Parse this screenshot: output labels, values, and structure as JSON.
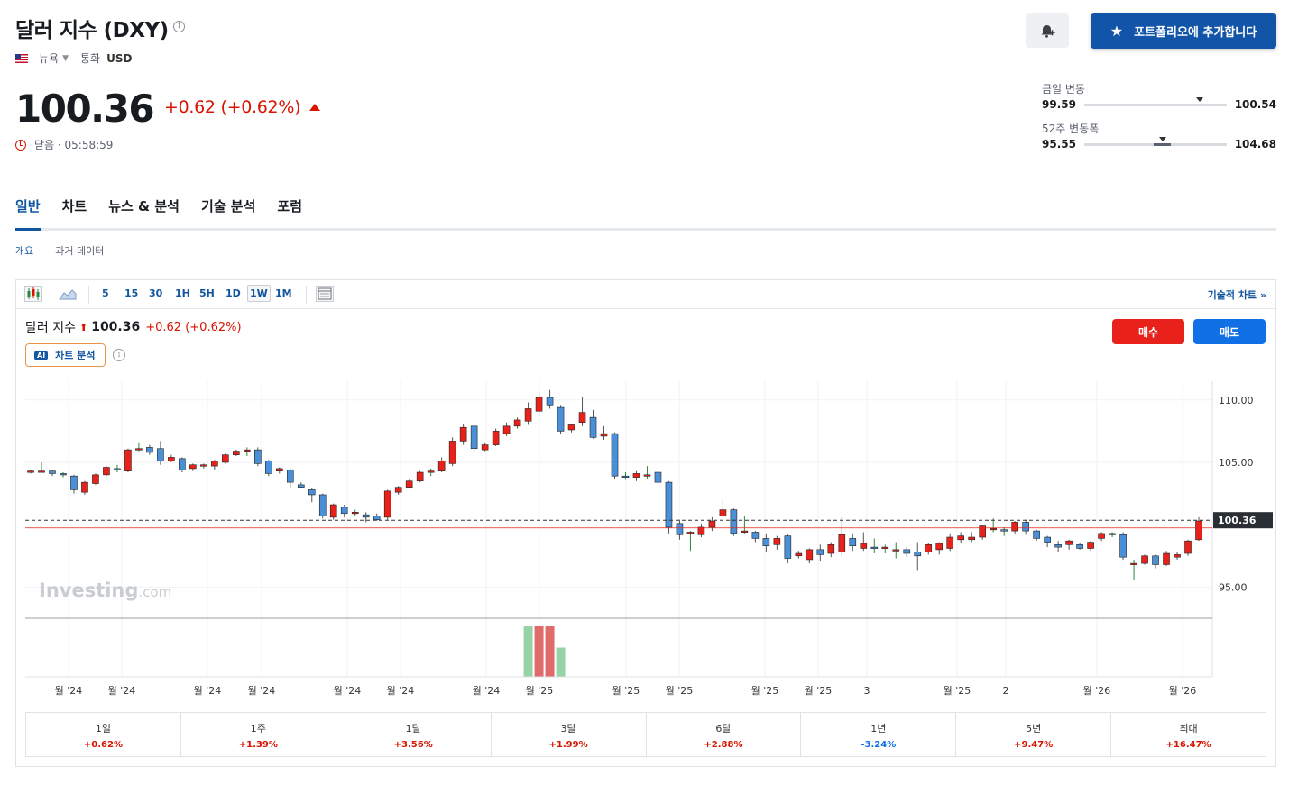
{
  "header": {
    "title": "달러 지수 (DXY)",
    "exchange": "뉴욕",
    "currency_label": "통화",
    "currency": "USD",
    "price": "100.36",
    "change": "+0.62",
    "change_pct": "(+0.62%)",
    "status": "닫음 · 05:58:59",
    "add_portfolio_label": "포트폴리오에 추가합니다"
  },
  "ranges": {
    "day": {
      "label": "금일 변동",
      "low": "99.59",
      "high": "100.54",
      "position": 0.81
    },
    "week52": {
      "label": "52주 변동폭",
      "low": "95.55",
      "high": "104.68",
      "position": 0.55
    }
  },
  "tabs": [
    "일반",
    "차트",
    "뉴스 & 분석",
    "기술 분석",
    "포럼"
  ],
  "subtabs": [
    "개요",
    "과거 데이터"
  ],
  "toolbar": {
    "timeframes": [
      "5",
      "15",
      "30",
      "1H",
      "5H",
      "1D",
      "1W",
      "1M"
    ],
    "active_timeframe": "1W",
    "tech_chart_label": "기술적 차트 »"
  },
  "chart_legend": {
    "name": "달러 지수",
    "value": "100.36",
    "change": "+0.62 (+0.62%)"
  },
  "ai_label": "차트 분석",
  "ai_badge": "AI",
  "buy_label": "매수",
  "sell_label": "매도",
  "watermark": "Investing.com",
  "colors": {
    "up": "#e8221b",
    "down": "#4a90d9",
    "accent": "#1256a0"
  },
  "chart_data": {
    "type": "candlestick",
    "ylim": [
      92.5,
      111.5
    ],
    "y_ticks": [
      110.0,
      105.0,
      95.0
    ],
    "y_tick_labels": [
      "110.00",
      "105.00",
      "95.00"
    ],
    "last_price_label": "100.36",
    "x_tick_labels": [
      "월 '24",
      "월 '24",
      "월 '24",
      "월 '24",
      "월 '24",
      "월 '24",
      "월 '24",
      "월 '25",
      "월 '25",
      "월 '25",
      "월 '25",
      "월 '25",
      "3",
      "월 '25",
      "2",
      "월 '26",
      "월 '26"
    ],
    "candles": [
      [
        104.2,
        104.3,
        104.1,
        104.35
      ],
      [
        104.3,
        104.3,
        104.2,
        105.0
      ],
      [
        104.3,
        104.1,
        103.9,
        104.4
      ],
      [
        104.1,
        104.0,
        103.8,
        104.2
      ],
      [
        103.9,
        102.8,
        102.5,
        104.0
      ],
      [
        102.6,
        103.4,
        102.4,
        103.5
      ],
      [
        103.3,
        104.0,
        103.2,
        104.1
      ],
      [
        104.0,
        104.6,
        103.9,
        104.7
      ],
      [
        104.5,
        104.4,
        104.2,
        104.8
      ],
      [
        104.3,
        106.0,
        104.2,
        106.1
      ],
      [
        106.0,
        106.1,
        105.9,
        106.6
      ],
      [
        106.2,
        105.8,
        105.6,
        106.4
      ],
      [
        106.1,
        105.1,
        104.8,
        106.7
      ],
      [
        105.1,
        105.4,
        105.0,
        105.6
      ],
      [
        105.3,
        104.4,
        104.2,
        105.4
      ],
      [
        104.5,
        104.8,
        104.3,
        104.9
      ],
      [
        104.7,
        104.8,
        104.5,
        104.9
      ],
      [
        104.7,
        105.1,
        104.4,
        105.2
      ],
      [
        105.0,
        105.6,
        104.9,
        105.7
      ],
      [
        105.6,
        105.9,
        105.5,
        106.0
      ],
      [
        105.9,
        106.0,
        105.5,
        106.2
      ],
      [
        106.0,
        104.9,
        104.7,
        106.2
      ],
      [
        105.1,
        104.1,
        103.9,
        105.2
      ],
      [
        104.3,
        104.5,
        104.1,
        104.6
      ],
      [
        104.4,
        103.4,
        102.9,
        104.5
      ],
      [
        103.2,
        103.0,
        102.9,
        103.4
      ],
      [
        102.8,
        102.4,
        101.8,
        102.9
      ],
      [
        102.4,
        100.7,
        100.5,
        102.5
      ],
      [
        100.6,
        101.6,
        100.4,
        101.7
      ],
      [
        101.4,
        100.9,
        100.6,
        101.6
      ],
      [
        101.0,
        101.0,
        100.7,
        101.2
      ],
      [
        100.8,
        100.6,
        100.2,
        101.0
      ],
      [
        100.7,
        100.4,
        100.3,
        100.9
      ],
      [
        100.6,
        102.7,
        100.4,
        102.8
      ],
      [
        102.6,
        103.0,
        102.4,
        103.1
      ],
      [
        103.0,
        103.5,
        102.9,
        103.6
      ],
      [
        103.5,
        104.2,
        103.4,
        104.3
      ],
      [
        104.2,
        104.3,
        103.9,
        104.5
      ],
      [
        104.3,
        105.1,
        104.2,
        105.4
      ],
      [
        104.9,
        106.7,
        104.7,
        107.0
      ],
      [
        106.7,
        107.8,
        106.4,
        108.1
      ],
      [
        107.9,
        106.1,
        105.8,
        108.0
      ],
      [
        106.0,
        106.4,
        105.9,
        106.6
      ],
      [
        106.4,
        107.5,
        106.3,
        107.7
      ],
      [
        107.3,
        107.9,
        107.1,
        108.2
      ],
      [
        107.9,
        108.4,
        107.7,
        108.6
      ],
      [
        108.3,
        109.3,
        108.0,
        109.8
      ],
      [
        109.1,
        110.2,
        108.9,
        110.6
      ],
      [
        110.2,
        109.6,
        109.3,
        110.8
      ],
      [
        109.4,
        107.5,
        107.3,
        109.6
      ],
      [
        107.6,
        108.0,
        107.4,
        108.1
      ],
      [
        108.2,
        109.0,
        107.9,
        110.2
      ],
      [
        108.6,
        107.0,
        106.9,
        109.2
      ],
      [
        107.1,
        107.3,
        106.8,
        107.9
      ],
      [
        107.3,
        103.9,
        103.7,
        107.4
      ],
      [
        103.9,
        103.8,
        103.6,
        104.2
      ],
      [
        103.8,
        104.1,
        103.5,
        104.3
      ],
      [
        104.0,
        104.0,
        103.7,
        104.7
      ],
      [
        104.2,
        103.4,
        102.8,
        104.6
      ],
      [
        103.4,
        99.8,
        99.3,
        103.5
      ],
      [
        100.1,
        99.2,
        98.8,
        100.4
      ],
      [
        99.3,
        99.4,
        97.9,
        99.5
      ],
      [
        99.2,
        99.8,
        99.0,
        100.1
      ],
      [
        99.8,
        100.3,
        99.5,
        100.6
      ],
      [
        100.7,
        101.2,
        100.6,
        102.0
      ],
      [
        101.2,
        99.3,
        99.1,
        101.3
      ],
      [
        99.4,
        99.5,
        99.3,
        100.7
      ],
      [
        99.4,
        98.9,
        98.6,
        99.5
      ],
      [
        98.9,
        98.3,
        97.8,
        99.3
      ],
      [
        98.4,
        98.9,
        98.0,
        99.1
      ],
      [
        99.1,
        97.3,
        96.9,
        99.2
      ],
      [
        97.5,
        97.7,
        97.3,
        97.9
      ],
      [
        97.2,
        98.0,
        96.9,
        98.1
      ],
      [
        98.0,
        97.6,
        97.1,
        98.4
      ],
      [
        97.7,
        98.4,
        97.4,
        98.6
      ],
      [
        97.8,
        99.2,
        97.5,
        100.6
      ],
      [
        98.9,
        98.3,
        97.9,
        99.3
      ],
      [
        98.1,
        98.5,
        97.9,
        99.4
      ],
      [
        98.2,
        98.1,
        97.7,
        98.9
      ],
      [
        98.1,
        98.2,
        97.7,
        98.4
      ],
      [
        97.9,
        98.0,
        97.3,
        98.6
      ],
      [
        98.0,
        97.7,
        97.4,
        98.2
      ],
      [
        97.8,
        97.5,
        96.3,
        98.6
      ],
      [
        97.8,
        98.4,
        97.6,
        98.5
      ],
      [
        98.0,
        98.5,
        97.6,
        98.6
      ],
      [
        98.1,
        99.0,
        97.9,
        99.3
      ],
      [
        98.8,
        99.1,
        98.5,
        99.4
      ],
      [
        98.8,
        99.0,
        98.6,
        99.4
      ],
      [
        99.0,
        99.9,
        98.8,
        100.0
      ],
      [
        99.6,
        99.7,
        99.4,
        100.5
      ],
      [
        99.6,
        99.5,
        99.1,
        99.8
      ],
      [
        99.5,
        100.2,
        99.3,
        100.3
      ],
      [
        100.2,
        99.5,
        99.2,
        100.4
      ],
      [
        99.5,
        98.9,
        98.7,
        99.6
      ],
      [
        99.0,
        98.6,
        98.2,
        99.1
      ],
      [
        98.4,
        98.2,
        97.8,
        98.7
      ],
      [
        98.4,
        98.7,
        98.0,
        98.8
      ],
      [
        98.4,
        98.1,
        98.0,
        98.5
      ],
      [
        98.1,
        98.6,
        97.9,
        98.7
      ],
      [
        98.9,
        99.3,
        98.7,
        99.4
      ],
      [
        99.3,
        99.2,
        99.0,
        99.4
      ],
      [
        99.2,
        97.4,
        97.2,
        99.4
      ],
      [
        96.8,
        96.9,
        95.6,
        97.2
      ],
      [
        96.9,
        97.5,
        96.8,
        97.6
      ],
      [
        97.5,
        96.8,
        96.5,
        97.6
      ],
      [
        96.8,
        97.7,
        96.7,
        97.9
      ],
      [
        97.4,
        97.6,
        97.2,
        97.8
      ],
      [
        97.7,
        98.7,
        97.5,
        98.8
      ],
      [
        98.8,
        100.3,
        98.7,
        100.6
      ]
    ],
    "volume": [
      0,
      0,
      0,
      0,
      0,
      0,
      0,
      0,
      0,
      0,
      0,
      0,
      0,
      0,
      0,
      0,
      0,
      0,
      0,
      0,
      0,
      0,
      0,
      0,
      0,
      0,
      0,
      0,
      0,
      0,
      0,
      0,
      0,
      0,
      0,
      0,
      0,
      0,
      0,
      0,
      0,
      0,
      0,
      0,
      0,
      0,
      0,
      0,
      0,
      0,
      0,
      0,
      0,
      0,
      0,
      0,
      0,
      0,
      0,
      0,
      0,
      0,
      0,
      0,
      0,
      0,
      0,
      0,
      0,
      0,
      0,
      0,
      0,
      0,
      0,
      0,
      0,
      0,
      0,
      0,
      0,
      0,
      0,
      0,
      0,
      0,
      0,
      0,
      0,
      0,
      0,
      0,
      0,
      0,
      0,
      0,
      0,
      0,
      0,
      0,
      0,
      0,
      0,
      0,
      0,
      0,
      0,
      0,
      0,
      0
    ],
    "volume_bars": [
      {
        "index": 46,
        "value": 1.0,
        "dir": "up"
      },
      {
        "index": 47,
        "value": 1.0,
        "dir": "down"
      },
      {
        "index": 48,
        "value": 1.0,
        "dir": "down"
      },
      {
        "index": 49,
        "value": 0.58,
        "dir": "up"
      }
    ],
    "reference_line": 100.36,
    "prev_close_line": 99.74
  },
  "performance": [
    {
      "label": "1일",
      "value": "+0.62%",
      "dir": "up"
    },
    {
      "label": "1주",
      "value": "+1.39%",
      "dir": "up"
    },
    {
      "label": "1달",
      "value": "+3.56%",
      "dir": "up"
    },
    {
      "label": "3달",
      "value": "+1.99%",
      "dir": "up"
    },
    {
      "label": "6달",
      "value": "+2.88%",
      "dir": "up"
    },
    {
      "label": "1년",
      "value": "-3.24%",
      "dir": "down"
    },
    {
      "label": "5년",
      "value": "+9.47%",
      "dir": "up"
    },
    {
      "label": "최대",
      "value": "+16.47%",
      "dir": "up"
    }
  ]
}
